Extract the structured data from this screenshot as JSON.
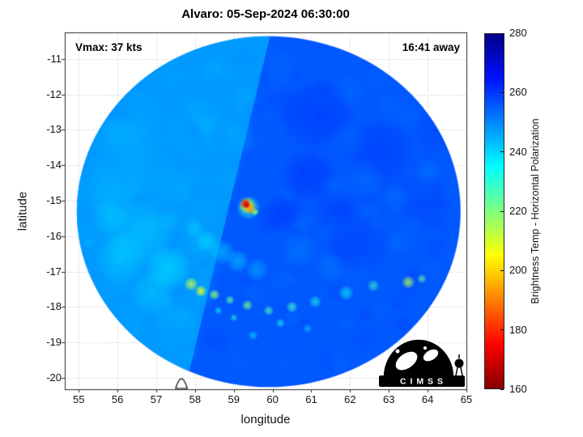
{
  "logo": {
    "text": "C I M S S"
  },
  "chart_data": {
    "type": "heatmap",
    "title": "Alvaro: 05-Sep-2024 06:30:00",
    "xlabel": "longitude",
    "ylabel": "latitude",
    "annotations": {
      "vmax": "Vmax: 37 kts",
      "eta": "16:41 away"
    },
    "x_ticks": [
      55,
      56,
      57,
      58,
      59,
      60,
      61,
      62,
      63,
      64,
      65
    ],
    "y_ticks": [
      -11,
      -12,
      -13,
      -14,
      -15,
      -16,
      -17,
      -18,
      -19,
      -20
    ],
    "x_range": [
      54.64,
      65.0
    ],
    "y_range": [
      -20.32,
      -10.25
    ],
    "grid": true,
    "colorbar": {
      "label": "Brightness Temp - Horizontal Polarization",
      "min": 160,
      "max": 280,
      "ticks": [
        160,
        180,
        200,
        220,
        240,
        260,
        280
      ],
      "colormap": "jet-reversed",
      "stops": [
        [
          0,
          0,
          0,
          133
        ],
        [
          0.125,
          0,
          16,
          255
        ],
        [
          0.375,
          0,
          255,
          255
        ],
        [
          0.625,
          255,
          255,
          0
        ],
        [
          0.875,
          255,
          0,
          0
        ],
        [
          1,
          133,
          0,
          0
        ]
      ]
    },
    "swath": {
      "center": [
        59.9,
        -15.31
      ],
      "radius_deg": 4.95,
      "base_temp": 256,
      "sector_temp": 244,
      "seam": [
        [
          59.97,
          -10.2
        ],
        [
          57.81,
          -20.0
        ]
      ]
    },
    "island": {
      "lon": 57.65,
      "width_deg": 0.3,
      "height_deg": 0.25
    },
    "noise": {
      "seed": 13,
      "count": 230,
      "amp": 6
    },
    "features": [
      [
        56.3,
        -13.4,
        0.9,
        244,
        0.45
      ],
      [
        55.9,
        -14.8,
        0.8,
        242,
        0.45
      ],
      [
        56.6,
        -15.9,
        0.9,
        240,
        0.5
      ],
      [
        56.1,
        -16.6,
        0.7,
        239,
        0.45
      ],
      [
        57.1,
        -14.5,
        0.8,
        245,
        0.4
      ],
      [
        57.3,
        -16.9,
        0.6,
        236,
        0.5
      ],
      [
        56.9,
        -17.6,
        0.6,
        240,
        0.45
      ],
      [
        57.6,
        -13.1,
        0.7,
        247,
        0.35
      ],
      [
        55.8,
        -15.5,
        0.5,
        238,
        0.4
      ],
      [
        57.9,
        -16.0,
        0.5,
        244,
        0.35
      ],
      [
        57.5,
        -18.5,
        0.7,
        245,
        0.35
      ],
      [
        56.7,
        -12.5,
        0.6,
        246,
        0.35
      ],
      [
        61.2,
        -12.6,
        1.0,
        262,
        0.45
      ],
      [
        62.8,
        -13.6,
        0.9,
        262,
        0.4
      ],
      [
        63.9,
        -15.0,
        0.8,
        261,
        0.35
      ],
      [
        62.2,
        -16.2,
        0.9,
        261,
        0.35
      ],
      [
        60.9,
        -14.3,
        0.7,
        263,
        0.45
      ],
      [
        60.25,
        -15.35,
        0.5,
        262,
        0.5
      ],
      [
        64.2,
        -13.0,
        0.6,
        260,
        0.35
      ],
      [
        61.6,
        -15.2,
        0.6,
        261,
        0.4
      ],
      [
        60.4,
        -12.3,
        0.7,
        259,
        0.35
      ],
      [
        62.4,
        -14.4,
        0.5,
        252,
        0.4
      ],
      [
        63.2,
        -14.9,
        0.4,
        251,
        0.4
      ],
      [
        61.9,
        -13.3,
        0.5,
        252,
        0.35
      ],
      [
        63.1,
        -12.4,
        0.5,
        253,
        0.3
      ],
      [
        64.0,
        -14.2,
        0.35,
        250,
        0.4
      ],
      [
        60.7,
        -16.4,
        0.5,
        250,
        0.45
      ],
      [
        61.5,
        -16.9,
        0.4,
        249,
        0.4
      ],
      [
        62.0,
        -11.9,
        0.45,
        251,
        0.3
      ],
      [
        63.4,
        -16.1,
        0.4,
        252,
        0.35
      ],
      [
        58.3,
        -16.15,
        0.3,
        239,
        0.6
      ],
      [
        58.7,
        -16.45,
        0.33,
        241,
        0.6
      ],
      [
        59.1,
        -16.7,
        0.3,
        240,
        0.55
      ],
      [
        59.6,
        -16.95,
        0.3,
        243,
        0.5
      ],
      [
        58.0,
        -15.8,
        0.25,
        241,
        0.55
      ],
      [
        57.9,
        -17.35,
        0.18,
        214,
        0.85
      ],
      [
        58.15,
        -17.55,
        0.15,
        208,
        0.9
      ],
      [
        58.5,
        -17.65,
        0.14,
        218,
        0.85
      ],
      [
        58.9,
        -17.8,
        0.12,
        224,
        0.8
      ],
      [
        59.35,
        -17.95,
        0.14,
        220,
        0.8
      ],
      [
        59.9,
        -18.1,
        0.13,
        226,
        0.75
      ],
      [
        60.5,
        -18.0,
        0.15,
        228,
        0.75
      ],
      [
        61.1,
        -17.85,
        0.16,
        231,
        0.65
      ],
      [
        61.9,
        -17.6,
        0.2,
        233,
        0.6
      ],
      [
        62.6,
        -17.4,
        0.16,
        228,
        0.65
      ],
      [
        63.5,
        -17.3,
        0.17,
        215,
        0.8
      ],
      [
        63.85,
        -17.2,
        0.12,
        223,
        0.75
      ],
      [
        60.2,
        -18.45,
        0.12,
        232,
        0.65
      ],
      [
        59.0,
        -18.3,
        0.1,
        230,
        0.65
      ],
      [
        59.5,
        -18.8,
        0.12,
        237,
        0.6
      ],
      [
        60.9,
        -18.6,
        0.12,
        238,
        0.55
      ],
      [
        58.6,
        -18.1,
        0.1,
        234,
        0.65
      ],
      [
        59.2,
        -11.1,
        0.5,
        250,
        0.35
      ],
      [
        58.5,
        -11.5,
        0.45,
        248,
        0.35
      ],
      [
        59.95,
        -15.55,
        0.45,
        259,
        0.45
      ],
      [
        59.38,
        -15.2,
        0.32,
        230,
        0.75
      ],
      [
        59.35,
        -15.14,
        0.22,
        207,
        0.9
      ],
      [
        59.42,
        -15.22,
        0.15,
        192,
        0.9
      ],
      [
        59.3,
        -15.08,
        0.14,
        175,
        0.95
      ],
      [
        59.33,
        -15.12,
        0.09,
        168,
        0.95
      ],
      [
        59.55,
        -15.32,
        0.09,
        212,
        0.85
      ]
    ]
  }
}
